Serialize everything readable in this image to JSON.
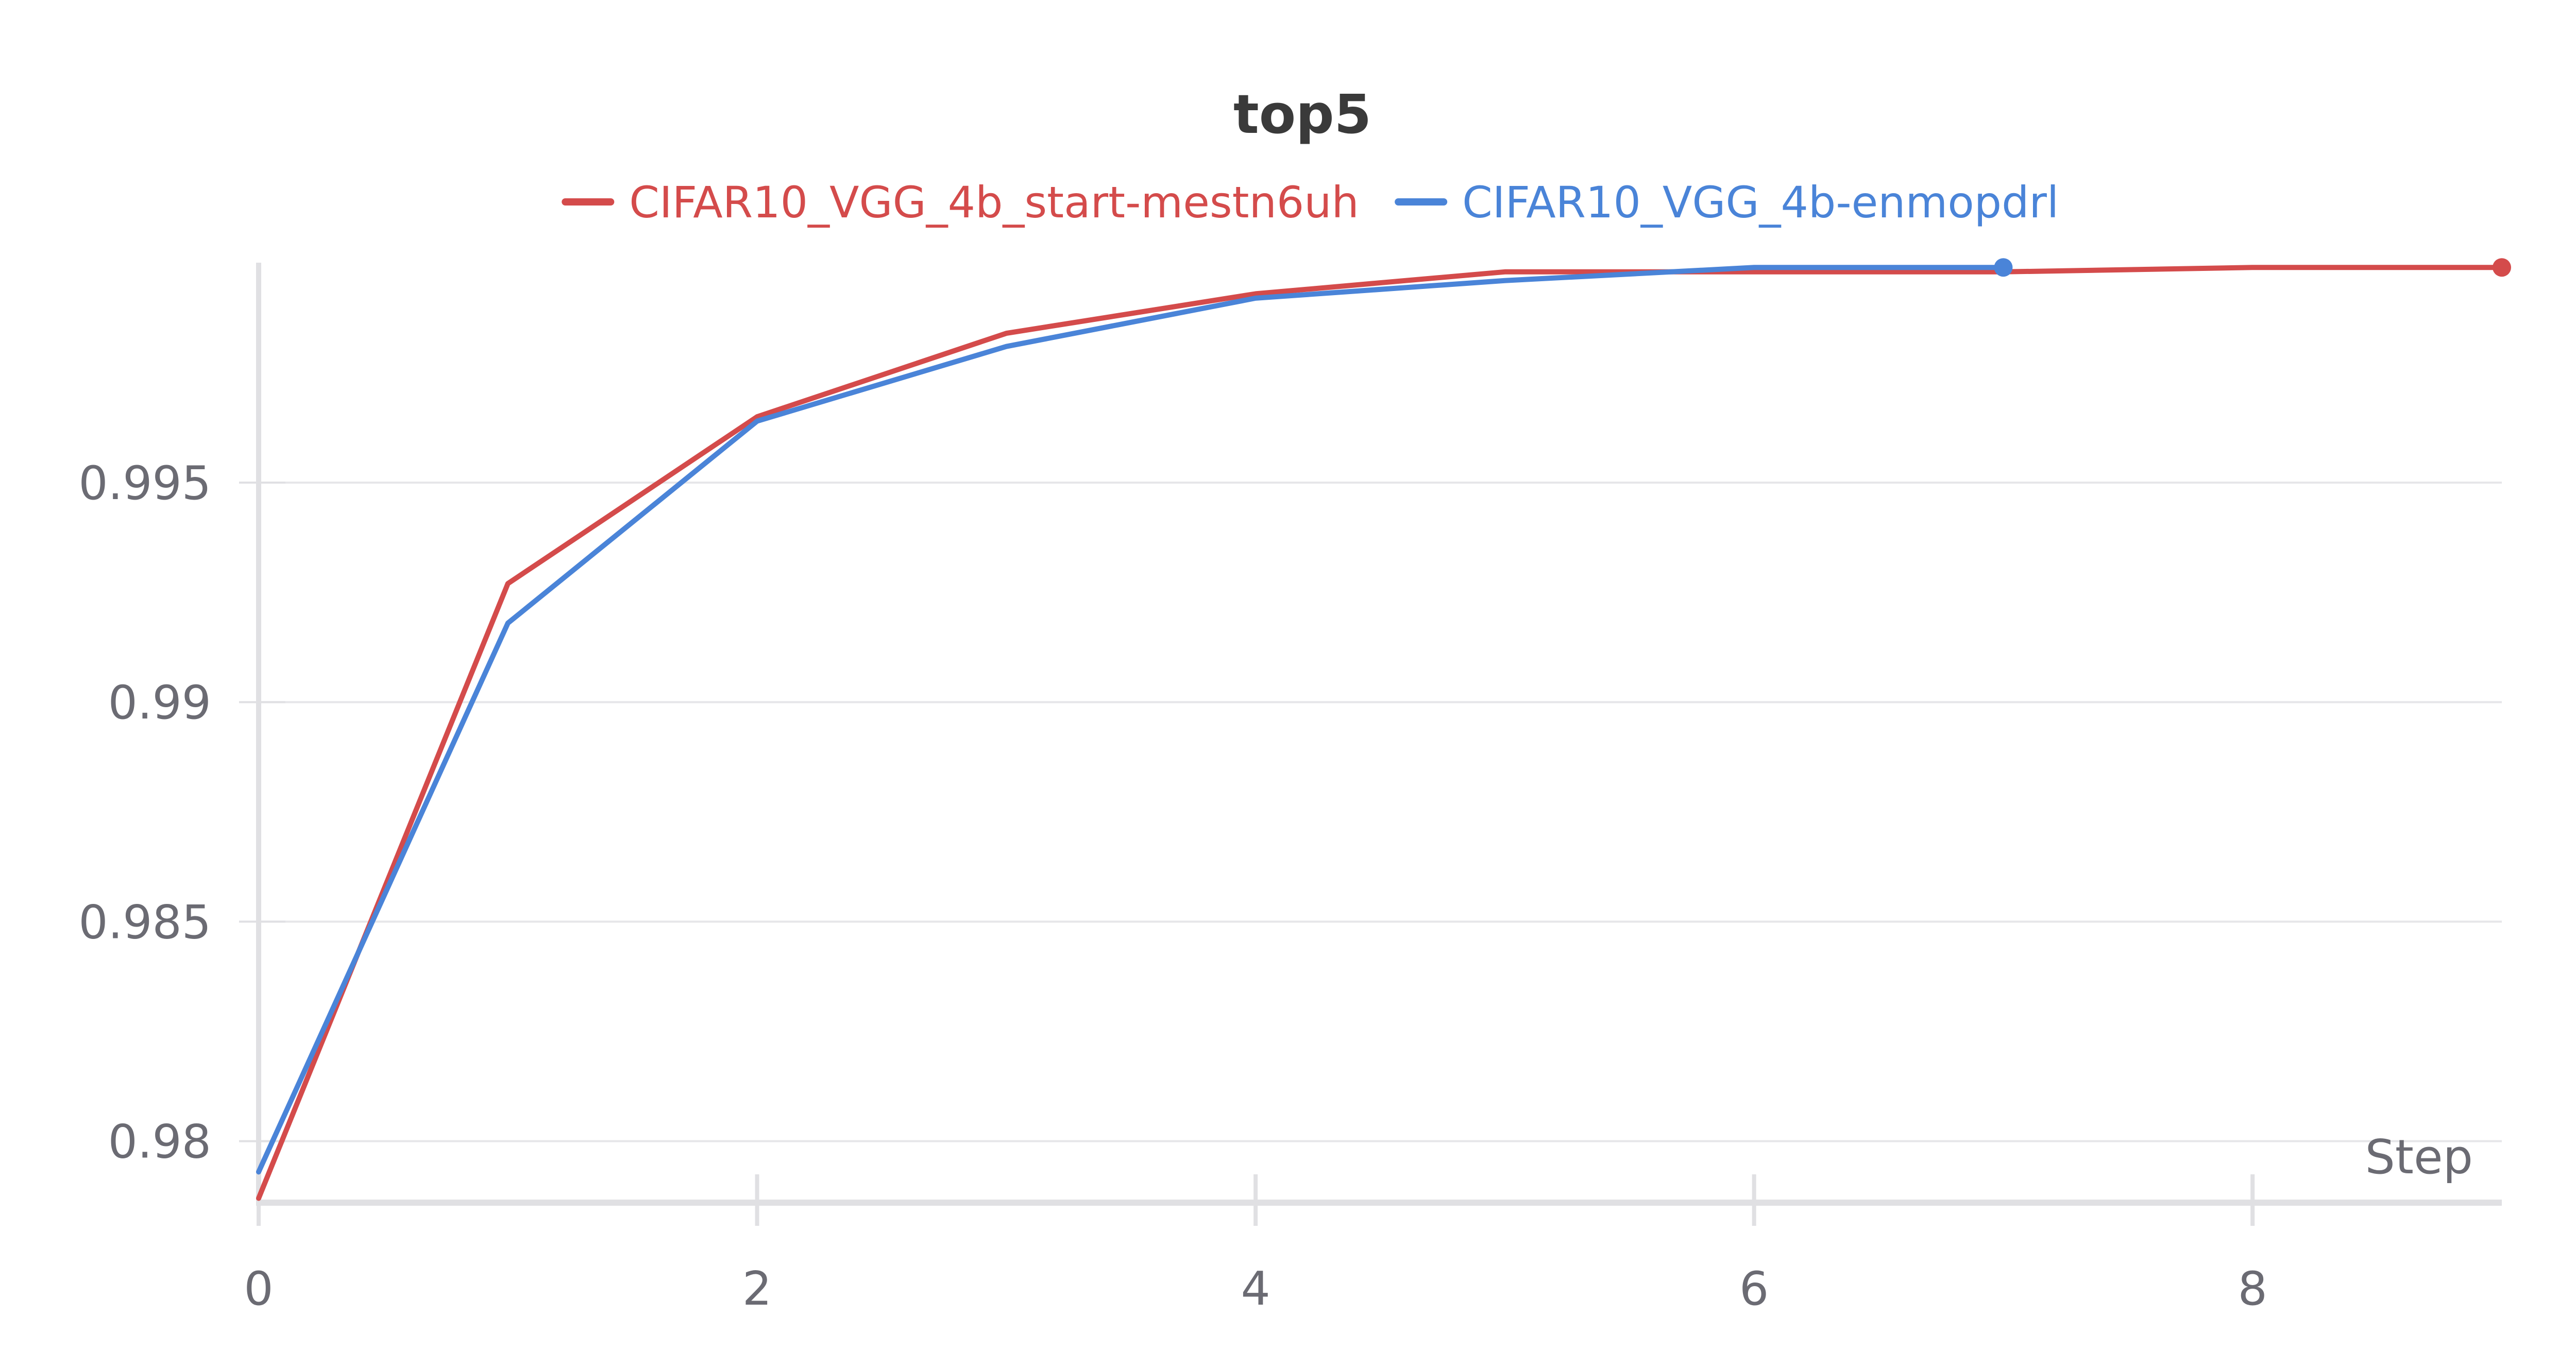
{
  "chart_data": {
    "type": "line",
    "title": "top5",
    "xlabel": "Step",
    "ylabel": "",
    "xlim": [
      0,
      9
    ],
    "ylim": [
      0.9786,
      0.99995
    ],
    "x_ticks": [
      0,
      2,
      4,
      6,
      8
    ],
    "y_ticks": [
      0.98,
      0.985,
      0.99,
      0.995
    ],
    "y_tick_labels": [
      "0.98",
      "0.985",
      "0.99",
      "0.995"
    ],
    "grid": true,
    "legend_position": "top",
    "series": [
      {
        "name": "CIFAR10_VGG_4b_start-mestn6uh",
        "color": "#d44b4b",
        "x": [
          0,
          1,
          2,
          3,
          4,
          5,
          6,
          7,
          8,
          9
        ],
        "y": [
          0.9787,
          0.9927,
          0.9965,
          0.9984,
          0.9993,
          0.9998,
          0.9998,
          0.9998,
          0.9999,
          0.9999
        ]
      },
      {
        "name": "CIFAR10_VGG_4b-enmopdrl",
        "color": "#4a84d8",
        "x": [
          0,
          1,
          2,
          3,
          4,
          5,
          6,
          7
        ],
        "y": [
          0.9793,
          0.9918,
          0.9964,
          0.9981,
          0.9992,
          0.9996,
          0.9999,
          0.9999
        ]
      }
    ]
  }
}
